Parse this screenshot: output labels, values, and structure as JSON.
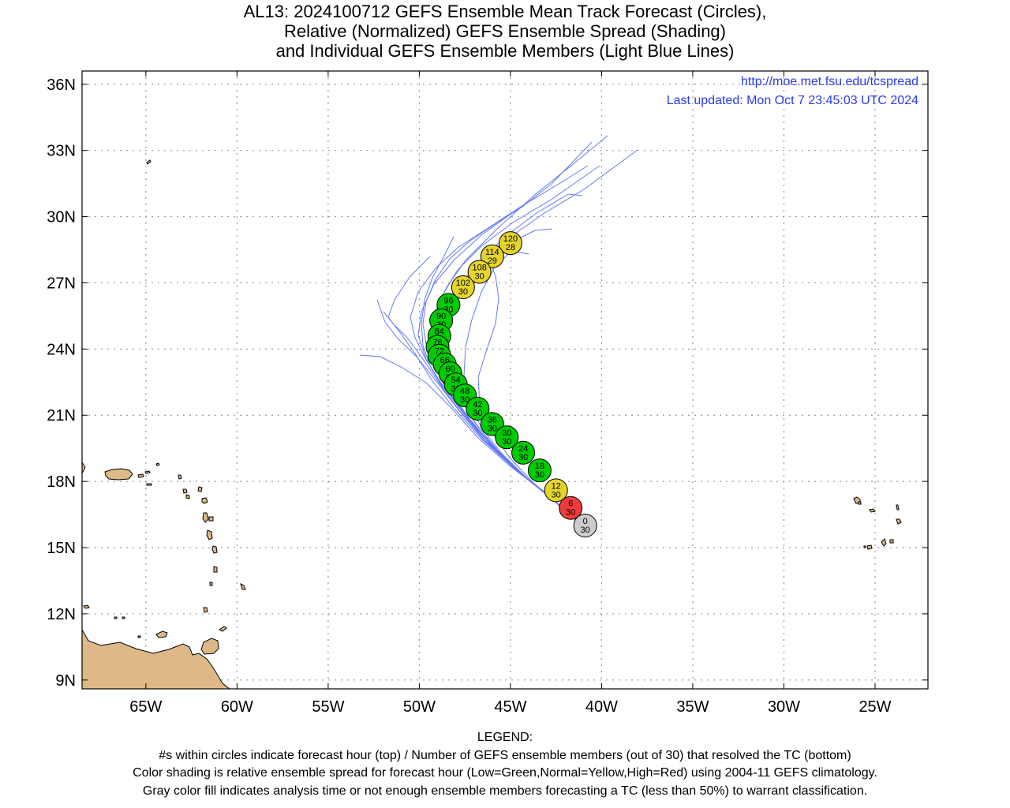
{
  "title": {
    "line1": "AL13: 2024100712 GEFS Ensemble Mean Track Forecast (Circles),",
    "line2": "Relative (Normalized) GEFS Ensemble Spread (Shading)",
    "line3": "and Individual GEFS Ensemble Members (Light Blue Lines)"
  },
  "info": {
    "url": "http://moe.met.fsu.edu/tcspread",
    "updated": "Last updated: Mon Oct 7 23:45:03 UTC 2024",
    "color": "#2a3bf0"
  },
  "axes": {
    "lat_ticks": [
      {
        "value": 36,
        "label": "36N"
      },
      {
        "value": 33,
        "label": "33N"
      },
      {
        "value": 30,
        "label": "30N"
      },
      {
        "value": 27,
        "label": "27N"
      },
      {
        "value": 24,
        "label": "24N"
      },
      {
        "value": 21,
        "label": "21N"
      },
      {
        "value": 18,
        "label": "18N"
      },
      {
        "value": 15,
        "label": "15N"
      },
      {
        "value": 12,
        "label": "12N"
      },
      {
        "value": 9,
        "label": "9N"
      }
    ],
    "lon_ticks": [
      {
        "value": -65,
        "label": "65W"
      },
      {
        "value": -60,
        "label": "60W"
      },
      {
        "value": -55,
        "label": "55W"
      },
      {
        "value": -50,
        "label": "50W"
      },
      {
        "value": -45,
        "label": "45W"
      },
      {
        "value": -40,
        "label": "40W"
      },
      {
        "value": -35,
        "label": "35W"
      },
      {
        "value": -30,
        "label": "30W"
      },
      {
        "value": -25,
        "label": "25W"
      }
    ],
    "lon_range": [
      -68.5,
      -22.1
    ],
    "lat_range": [
      8.6,
      36.6
    ],
    "grid": true
  },
  "colors": {
    "low": "#00cc00",
    "normal": "#e5d52a",
    "high": "#ee3b3b",
    "gray": "#cccccc",
    "member_line": "#4a62f5",
    "land": "#deb887"
  },
  "track": [
    {
      "hour": "0",
      "members": "30",
      "lon": -40.9,
      "lat": 16.0,
      "spread": "gray"
    },
    {
      "hour": "6",
      "members": "30",
      "lon": -41.7,
      "lat": 16.8,
      "spread": "high"
    },
    {
      "hour": "12",
      "members": "30",
      "lon": -42.5,
      "lat": 17.6,
      "spread": "normal"
    },
    {
      "hour": "18",
      "members": "30",
      "lon": -43.4,
      "lat": 18.5,
      "spread": "low"
    },
    {
      "hour": "24",
      "members": "30",
      "lon": -44.3,
      "lat": 19.3,
      "spread": "low"
    },
    {
      "hour": "30",
      "members": "30",
      "lon": -45.2,
      "lat": 20.0,
      "spread": "low"
    },
    {
      "hour": "36",
      "members": "30",
      "lon": -46.0,
      "lat": 20.6,
      "spread": "low"
    },
    {
      "hour": "42",
      "members": "30",
      "lon": -46.8,
      "lat": 21.3,
      "spread": "low"
    },
    {
      "hour": "48",
      "members": "30",
      "lon": -47.5,
      "lat": 21.9,
      "spread": "low"
    },
    {
      "hour": "54",
      "members": "30",
      "lon": -48.0,
      "lat": 22.4,
      "spread": "low"
    },
    {
      "hour": "60",
      "members": "30",
      "lon": -48.3,
      "lat": 22.9,
      "spread": "low"
    },
    {
      "hour": "66",
      "members": "30",
      "lon": -48.6,
      "lat": 23.3,
      "spread": "low"
    },
    {
      "hour": "72",
      "members": "30",
      "lon": -48.9,
      "lat": 23.7,
      "spread": "low"
    },
    {
      "hour": "78",
      "members": "30",
      "lon": -49.0,
      "lat": 24.1,
      "spread": "low"
    },
    {
      "hour": "84",
      "members": "30",
      "lon": -48.9,
      "lat": 24.6,
      "spread": "low"
    },
    {
      "hour": "90",
      "members": "30",
      "lon": -48.8,
      "lat": 25.3,
      "spread": "low"
    },
    {
      "hour": "96",
      "members": "30",
      "lon": -48.4,
      "lat": 26.0,
      "spread": "low"
    },
    {
      "hour": "102",
      "members": "30",
      "lon": -47.6,
      "lat": 26.8,
      "spread": "normal"
    },
    {
      "hour": "108",
      "members": "30",
      "lon": -46.7,
      "lat": 27.5,
      "spread": "normal"
    },
    {
      "hour": "114",
      "members": "29",
      "lon": -46.0,
      "lat": 28.2,
      "spread": "normal"
    },
    {
      "hour": "120",
      "members": "28",
      "lon": -45.0,
      "lat": 28.8,
      "spread": "normal"
    }
  ],
  "legend": {
    "heading": "LEGEND:",
    "line1": "#s within circles indicate forecast hour (top) / Number of GEFS ensemble members (out of 30) that resolved the TC (bottom)",
    "line2": "Color shading is relative ensemble spread for forecast hour (Low=Green,Normal=Yellow,High=Red) using 2004-11 GEFS climatology.",
    "line3": "Gray color fill indicates analysis time or not enough ensemble members forecasting a TC (less than 50%) to warrant classification."
  }
}
